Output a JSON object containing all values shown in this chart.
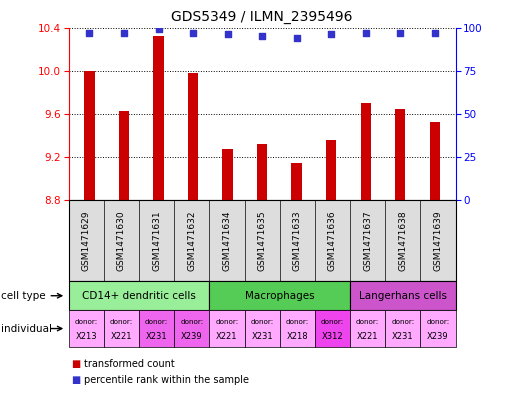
{
  "title": "GDS5349 / ILMN_2395496",
  "samples": [
    "GSM1471629",
    "GSM1471630",
    "GSM1471631",
    "GSM1471632",
    "GSM1471634",
    "GSM1471635",
    "GSM1471633",
    "GSM1471636",
    "GSM1471637",
    "GSM1471638",
    "GSM1471639"
  ],
  "bar_values": [
    10.0,
    9.63,
    10.32,
    9.98,
    9.28,
    9.32,
    9.15,
    9.36,
    9.7,
    9.65,
    9.53
  ],
  "dot_values": [
    97,
    97,
    99,
    97,
    96,
    95,
    94,
    96,
    97,
    97,
    97
  ],
  "ylim": [
    8.8,
    10.4
  ],
  "y2lim": [
    0,
    100
  ],
  "yticks": [
    8.8,
    9.2,
    9.6,
    10.0,
    10.4
  ],
  "y2ticks": [
    0,
    25,
    50,
    75,
    100
  ],
  "bar_color": "#cc0000",
  "dot_color": "#3333cc",
  "cell_types": [
    {
      "label": "CD14+ dendritic cells",
      "start": 0,
      "end": 4,
      "color": "#99ee99"
    },
    {
      "label": "Macrophages",
      "start": 4,
      "end": 8,
      "color": "#55cc55"
    },
    {
      "label": "Langerhans cells",
      "start": 8,
      "end": 11,
      "color": "#cc55cc"
    }
  ],
  "individuals": [
    {
      "donor": "X213",
      "color": "#ffaaff"
    },
    {
      "donor": "X221",
      "color": "#ffaaff"
    },
    {
      "donor": "X231",
      "color": "#ee66ee"
    },
    {
      "donor": "X239",
      "color": "#ee66ee"
    },
    {
      "donor": "X221",
      "color": "#ffaaff"
    },
    {
      "donor": "X231",
      "color": "#ffaaff"
    },
    {
      "donor": "X218",
      "color": "#ffaaff"
    },
    {
      "donor": "X312",
      "color": "#ee44ee"
    },
    {
      "donor": "X221",
      "color": "#ffaaff"
    },
    {
      "donor": "X231",
      "color": "#ffaaff"
    },
    {
      "donor": "X239",
      "color": "#ffaaff"
    }
  ],
  "legend_red_label": "transformed count",
  "legend_blue_label": "percentile rank within the sample",
  "label_cell_type": "cell type",
  "label_individual": "individual",
  "background_color": "#ffffff",
  "xtick_bg": "#dddddd",
  "bar_width": 0.3
}
